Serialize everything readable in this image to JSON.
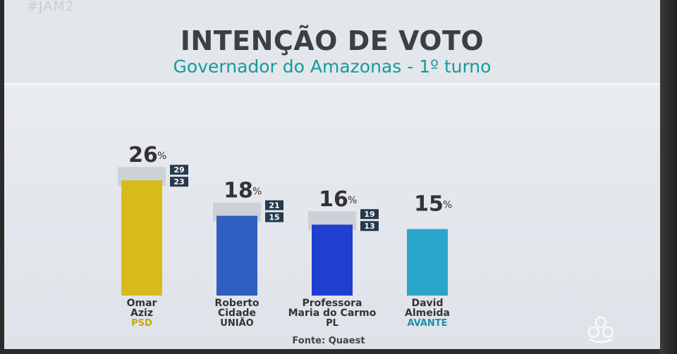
{
  "hashtag": "#JAM2",
  "title": "INTENÇÃO DE VOTO",
  "subtitle": "Governador do Amazonas - 1º turno",
  "source": "Fonte: Quaest",
  "chart_data": {
    "type": "bar",
    "title": "INTENÇÃO DE VOTO",
    "subtitle": "Governador do Amazonas - 1º turno",
    "unit": "%",
    "ylim": [
      0,
      30
    ],
    "categories": [
      "Omar Aziz",
      "Roberto Cidade",
      "Professora Maria do Carmo",
      "David Almeida"
    ],
    "candidates": [
      {
        "name_lines": [
          "Omar",
          "Aziz"
        ],
        "party": "PSD",
        "value": 26,
        "previous": [
          29,
          23
        ],
        "color": "#d6bb1a",
        "party_color": "#c9a800"
      },
      {
        "name_lines": [
          "Roberto",
          "Cidade"
        ],
        "party": "UNIÃO",
        "value": 18,
        "previous": [
          21,
          15
        ],
        "color": "#2f5fc0",
        "party_color": "#333333"
      },
      {
        "name_lines": [
          "Professora",
          "Maria do Carmo"
        ],
        "party": "PL",
        "value": 16,
        "previous": [
          19,
          13
        ],
        "color": "#1f3fd0",
        "party_color": "#333333"
      },
      {
        "name_lines": [
          "David",
          "Almeida"
        ],
        "party": "AVANTE",
        "value": 15,
        "previous": [],
        "color": "#2aa5c9",
        "party_color": "#1a8fb0"
      }
    ],
    "percent_symbol": "%"
  }
}
